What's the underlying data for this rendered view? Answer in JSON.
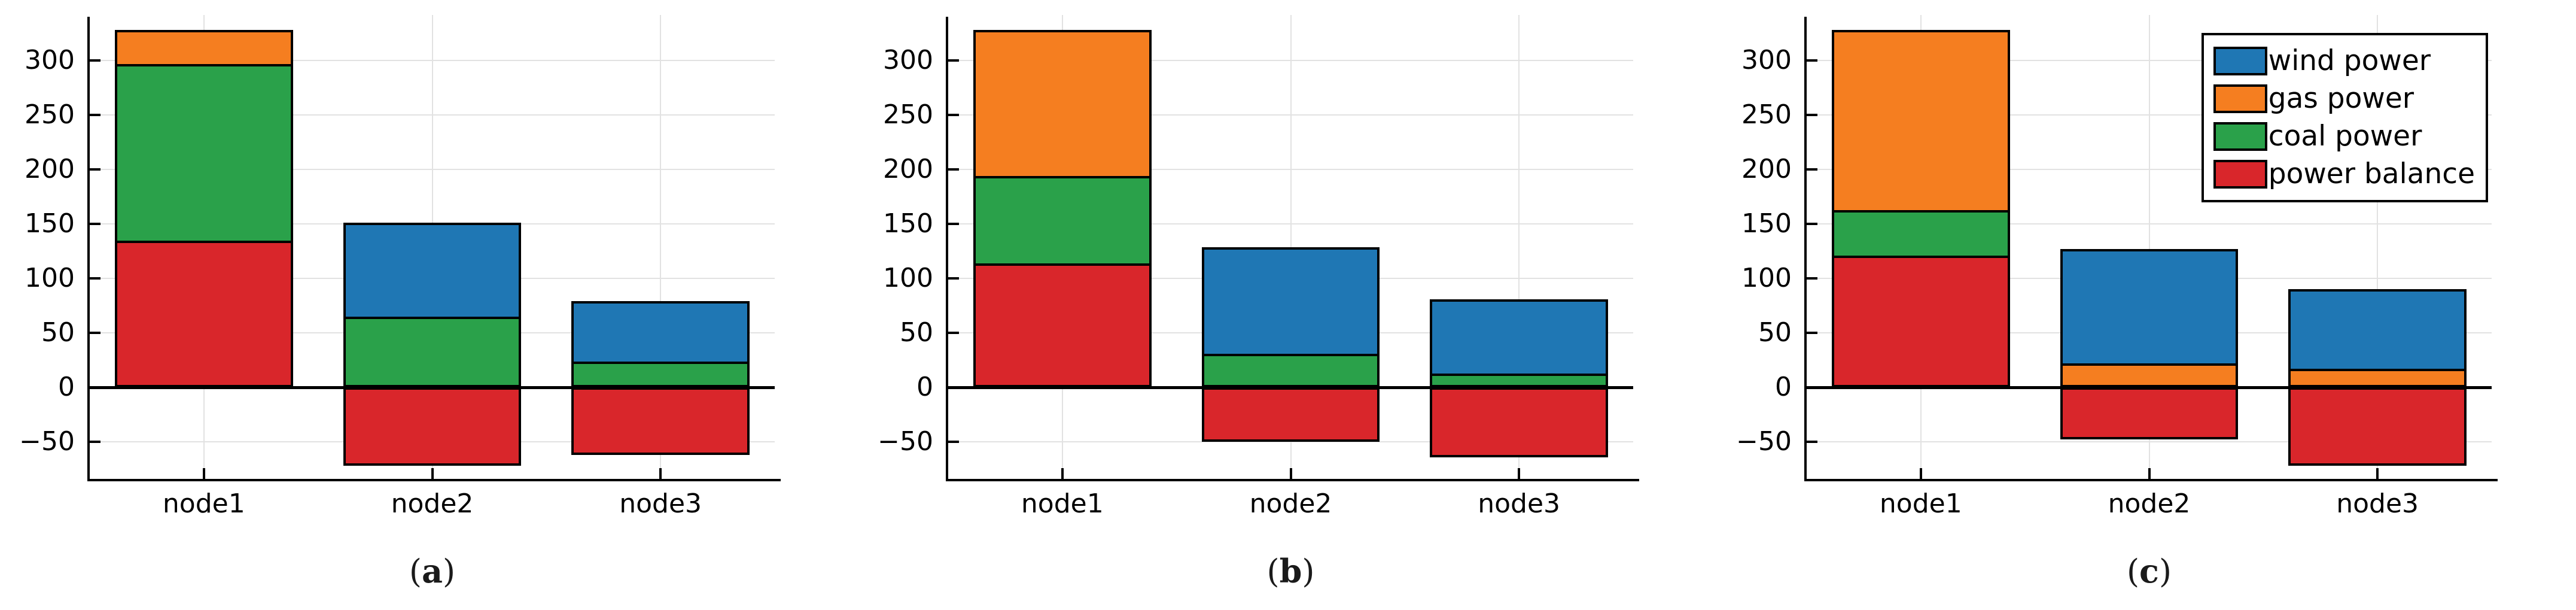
{
  "figure": {
    "background": "#ffffff"
  },
  "colors": {
    "wind": "#1f77b4",
    "gas": "#f57e20",
    "coal": "#2aa14a",
    "balance": "#d9262b",
    "axis": "#000000",
    "grid": "#e2e2e2"
  },
  "legend": {
    "position": "top-right",
    "items": [
      {
        "key": "wind",
        "label": "wind power"
      },
      {
        "key": "gas",
        "label": "gas power"
      },
      {
        "key": "coal",
        "label": "coal power"
      },
      {
        "key": "balance",
        "label": "power balance"
      }
    ]
  },
  "chart_data": [
    {
      "type": "bar",
      "stacked": true,
      "caption": {
        "open": "(",
        "letter": "a",
        "close": ")"
      },
      "categories": [
        "node1",
        "node2",
        "node3"
      ],
      "series": [
        {
          "name": "power balance",
          "key": "balance",
          "values": [
            135,
            -72,
            -62
          ]
        },
        {
          "name": "coal power",
          "key": "coal",
          "values": [
            162,
            65,
            24
          ]
        },
        {
          "name": "gas power",
          "key": "gas",
          "values": [
            31,
            0,
            0
          ]
        },
        {
          "name": "wind power",
          "key": "wind",
          "values": [
            0,
            86,
            55
          ]
        }
      ],
      "ylim": [
        -84,
        342
      ],
      "yticks": [
        {
          "value": 300,
          "label": "300"
        },
        {
          "value": 250,
          "label": "250"
        },
        {
          "value": 200,
          "label": "200"
        },
        {
          "value": 150,
          "label": "150"
        },
        {
          "value": 100,
          "label": "100"
        },
        {
          "value": 50,
          "label": "50"
        },
        {
          "value": 0,
          "label": "0"
        },
        {
          "value": -50,
          "label": "−50"
        }
      ],
      "grid": true,
      "show_legend": false
    },
    {
      "type": "bar",
      "stacked": true,
      "caption": {
        "open": "(",
        "letter": "b",
        "close": ")"
      },
      "categories": [
        "node1",
        "node2",
        "node3"
      ],
      "series": [
        {
          "name": "power balance",
          "key": "balance",
          "values": [
            114,
            -50,
            -64
          ]
        },
        {
          "name": "coal power",
          "key": "coal",
          "values": [
            80,
            31,
            13
          ]
        },
        {
          "name": "gas power",
          "key": "gas",
          "values": [
            134,
            0,
            0
          ]
        },
        {
          "name": "wind power",
          "key": "wind",
          "values": [
            0,
            98,
            68
          ]
        }
      ],
      "ylim": [
        -84,
        342
      ],
      "yticks": [
        {
          "value": 300,
          "label": "300"
        },
        {
          "value": 250,
          "label": "250"
        },
        {
          "value": 200,
          "label": "200"
        },
        {
          "value": 150,
          "label": "150"
        },
        {
          "value": 100,
          "label": "100"
        },
        {
          "value": 50,
          "label": "50"
        },
        {
          "value": 0,
          "label": "0"
        },
        {
          "value": -50,
          "label": "−50"
        }
      ],
      "grid": true,
      "show_legend": false
    },
    {
      "type": "bar",
      "stacked": true,
      "caption": {
        "open": "(",
        "letter": "c",
        "close": ")"
      },
      "categories": [
        "node1",
        "node2",
        "node3"
      ],
      "series": [
        {
          "name": "power balance",
          "key": "balance",
          "values": [
            121,
            -48,
            -72
          ]
        },
        {
          "name": "coal power",
          "key": "coal",
          "values": [
            42,
            0,
            0
          ]
        },
        {
          "name": "gas power",
          "key": "gas",
          "values": [
            165,
            22,
            17
          ]
        },
        {
          "name": "wind power",
          "key": "wind",
          "values": [
            0,
            105,
            73
          ]
        }
      ],
      "ylim": [
        -84,
        342
      ],
      "yticks": [
        {
          "value": 300,
          "label": "300"
        },
        {
          "value": 250,
          "label": "250"
        },
        {
          "value": 200,
          "label": "200"
        },
        {
          "value": 150,
          "label": "150"
        },
        {
          "value": 100,
          "label": "100"
        },
        {
          "value": 50,
          "label": "50"
        },
        {
          "value": 0,
          "label": "0"
        },
        {
          "value": -50,
          "label": "−50"
        }
      ],
      "grid": true,
      "show_legend": true
    }
  ]
}
